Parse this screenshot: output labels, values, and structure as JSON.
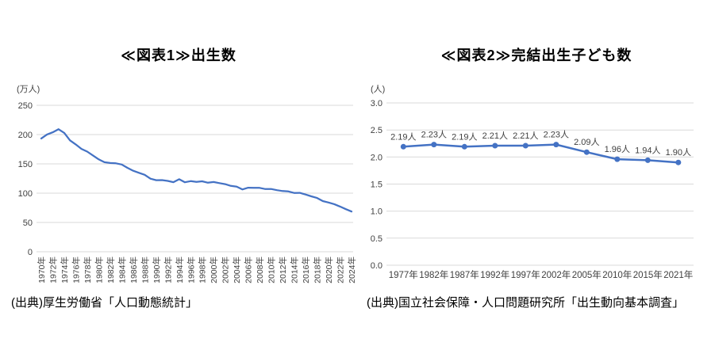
{
  "page": {
    "background": "#ffffff"
  },
  "chart_data": [
    {
      "id": "births",
      "type": "line",
      "title": "≪図表1≫出生数",
      "unit": "(万人)",
      "source": "(出典)厚生労働省「人口動態統計」",
      "ylim": [
        0,
        250
      ],
      "yticks": [
        0,
        50,
        100,
        150,
        200,
        250
      ],
      "ytick_labels": [
        "0",
        "50",
        "100",
        "150",
        "200",
        "250"
      ],
      "x": [
        1970,
        1971,
        1972,
        1973,
        1974,
        1975,
        1976,
        1977,
        1978,
        1979,
        1980,
        1981,
        1982,
        1983,
        1984,
        1985,
        1986,
        1987,
        1988,
        1989,
        1990,
        1991,
        1992,
        1993,
        1994,
        1995,
        1996,
        1997,
        1998,
        1999,
        2000,
        2001,
        2002,
        2003,
        2004,
        2005,
        2006,
        2007,
        2008,
        2009,
        2010,
        2011,
        2012,
        2013,
        2014,
        2015,
        2016,
        2017,
        2018,
        2019,
        2020,
        2021,
        2022,
        2023,
        2024
      ],
      "x_tick_labels": [
        "1970年",
        "1972年",
        "1974年",
        "1976年",
        "1978年",
        "1980年",
        "1982年",
        "1984年",
        "1986年",
        "1988年",
        "1990年",
        "1992年",
        "1994年",
        "1996年",
        "1998年",
        "2000年",
        "2002年",
        "2004年",
        "2006年",
        "2008年",
        "2010年",
        "2012年",
        "2014年",
        "2016年",
        "2018年",
        "2020年",
        "2022年",
        "2024年"
      ],
      "series": [
        {
          "name": "出生数",
          "values": [
            193.4,
            200.1,
            203.9,
            209.2,
            202.9,
            190.1,
            183.3,
            175.5,
            170.9,
            164.3,
            157.7,
            152.9,
            151.5,
            150.9,
            148.9,
            143.2,
            138.3,
            134.7,
            131.4,
            124.7,
            122.2,
            122.3,
            120.9,
            118.8,
            123.8,
            118.7,
            120.6,
            119.2,
            120.3,
            117.8,
            119.1,
            117.1,
            115.4,
            112.4,
            111.1,
            106.3,
            109.3,
            109.0,
            109.1,
            107.0,
            107.1,
            105.1,
            103.7,
            103.0,
            100.4,
            100.6,
            97.7,
            94.6,
            91.8,
            86.5,
            84.1,
            81.2,
            77.1,
            72.7,
            68.6
          ]
        }
      ],
      "markers": false,
      "grid": true,
      "legend": "none",
      "line_color": "#4472C4",
      "grid_color": "#D9D9D9",
      "tick_color": "#404040"
    },
    {
      "id": "completed-fertility",
      "type": "line",
      "title": "≪図表2≫完結出生子ども数",
      "unit": "(人)",
      "source": "(出典)国立社会保障・人口問題研究所「出生動向基本調査」",
      "ylim": [
        0,
        3.0
      ],
      "yticks": [
        0,
        0.5,
        1.0,
        1.5,
        2.0,
        2.5,
        3.0
      ],
      "ytick_labels": [
        "0.0",
        "0.5",
        "1.0",
        "1.5",
        "2.0",
        "2.5",
        "3.0"
      ],
      "categories": [
        "1977年",
        "1982年",
        "1987年",
        "1992年",
        "1997年",
        "2002年",
        "2005年",
        "2010年",
        "2015年",
        "2021年"
      ],
      "series": [
        {
          "name": "完結出生子ども数",
          "values": [
            2.19,
            2.23,
            2.19,
            2.21,
            2.21,
            2.23,
            2.09,
            1.96,
            1.94,
            1.9
          ]
        }
      ],
      "data_labels": [
        "2.19人",
        "2.23人",
        "2.19人",
        "2.21人",
        "2.21人",
        "2.23人",
        "2.09人",
        "1.96人",
        "1.94人",
        "1.90人"
      ],
      "markers": true,
      "grid": true,
      "legend": "none",
      "line_color": "#4472C4",
      "grid_color": "#D9D9D9",
      "tick_color": "#404040"
    }
  ]
}
